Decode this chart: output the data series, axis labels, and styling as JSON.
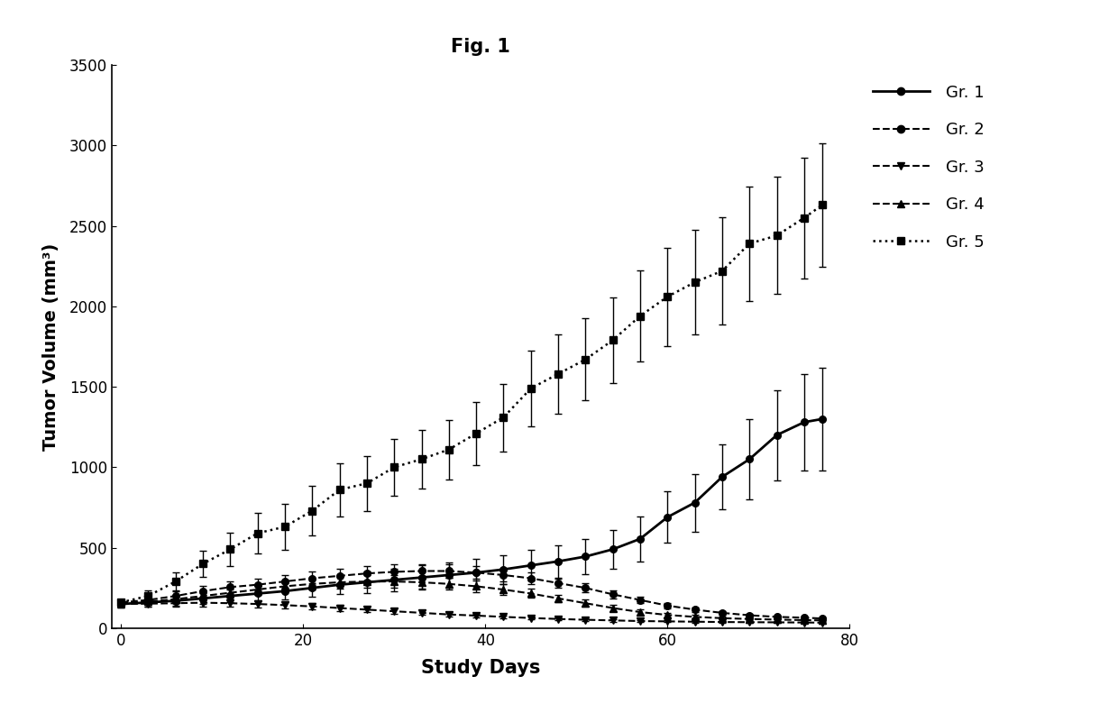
{
  "title": "Fig. 1",
  "xlabel": "Study Days",
  "ylabel": "Tumor Volume (mm³)",
  "xlim": [
    -1,
    80
  ],
  "ylim": [
    0,
    3500
  ],
  "xticks": [
    0,
    20,
    40,
    60,
    80
  ],
  "yticks": [
    0,
    500,
    1000,
    1500,
    2000,
    2500,
    3000,
    3500
  ],
  "gr1": {
    "x": [
      0,
      3,
      6,
      9,
      12,
      15,
      18,
      21,
      24,
      27,
      30,
      33,
      36,
      39,
      42,
      45,
      48,
      51,
      54,
      57,
      60,
      63,
      66,
      69,
      72,
      75,
      77
    ],
    "y": [
      150,
      160,
      170,
      185,
      200,
      215,
      230,
      250,
      270,
      285,
      300,
      315,
      330,
      345,
      365,
      390,
      415,
      445,
      490,
      555,
      690,
      780,
      940,
      1050,
      1200,
      1280,
      1300
    ],
    "yerr": [
      20,
      25,
      30,
      35,
      40,
      45,
      50,
      55,
      60,
      65,
      70,
      75,
      80,
      85,
      90,
      95,
      100,
      110,
      120,
      140,
      160,
      180,
      200,
      250,
      280,
      300,
      320
    ],
    "linestyle": "-",
    "marker": "o",
    "label": "Gr. 1",
    "linewidth": 2.0
  },
  "gr2": {
    "x": [
      0,
      3,
      6,
      9,
      12,
      15,
      18,
      21,
      24,
      27,
      30,
      33,
      36,
      39,
      42,
      45,
      48,
      51,
      54,
      57,
      60,
      63,
      66,
      69,
      72,
      75,
      77
    ],
    "y": [
      160,
      175,
      200,
      230,
      255,
      270,
      290,
      310,
      325,
      340,
      350,
      355,
      355,
      345,
      330,
      310,
      280,
      250,
      210,
      175,
      140,
      115,
      95,
      80,
      70,
      65,
      60
    ],
    "yerr": [
      20,
      25,
      28,
      32,
      36,
      38,
      40,
      42,
      44,
      45,
      45,
      44,
      42,
      40,
      37,
      34,
      30,
      27,
      24,
      20,
      18,
      15,
      13,
      11,
      10,
      9,
      8
    ],
    "linestyle": "--",
    "marker": "o",
    "label": "Gr. 2",
    "linewidth": 1.5
  },
  "gr3": {
    "x": [
      0,
      3,
      6,
      9,
      12,
      15,
      18,
      21,
      24,
      27,
      30,
      33,
      36,
      39,
      42,
      45,
      48,
      51,
      54,
      57,
      60,
      63,
      66,
      69,
      72,
      75,
      77
    ],
    "y": [
      150,
      152,
      155,
      158,
      155,
      150,
      143,
      135,
      125,
      115,
      105,
      95,
      85,
      78,
      70,
      63,
      57,
      52,
      48,
      44,
      42,
      40,
      38,
      37,
      36,
      35,
      34
    ],
    "yerr": [
      20,
      20,
      21,
      22,
      22,
      21,
      20,
      19,
      18,
      17,
      16,
      14,
      13,
      12,
      10,
      9,
      8,
      7,
      7,
      6,
      6,
      5,
      5,
      5,
      4,
      4,
      4
    ],
    "linestyle": "--",
    "marker": "v",
    "label": "Gr. 3",
    "linewidth": 1.5
  },
  "gr4": {
    "x": [
      0,
      3,
      6,
      9,
      12,
      15,
      18,
      21,
      24,
      27,
      30,
      33,
      36,
      39,
      42,
      45,
      48,
      51,
      54,
      57,
      60,
      63,
      66,
      69,
      72,
      75,
      77
    ],
    "y": [
      155,
      165,
      180,
      200,
      220,
      240,
      260,
      275,
      285,
      290,
      290,
      285,
      275,
      260,
      240,
      215,
      185,
      155,
      125,
      100,
      82,
      70,
      62,
      57,
      53,
      50,
      48
    ],
    "yerr": [
      20,
      22,
      24,
      27,
      30,
      33,
      35,
      37,
      38,
      39,
      39,
      38,
      36,
      34,
      31,
      28,
      24,
      21,
      18,
      15,
      13,
      11,
      9,
      8,
      7,
      6,
      6
    ],
    "linestyle": "--",
    "marker": "^",
    "label": "Gr. 4",
    "linewidth": 1.5
  },
  "gr5": {
    "x": [
      0,
      3,
      6,
      9,
      12,
      15,
      18,
      21,
      24,
      27,
      30,
      33,
      36,
      39,
      42,
      45,
      48,
      51,
      54,
      57,
      60,
      63,
      66,
      69,
      72,
      75,
      77
    ],
    "y": [
      160,
      200,
      290,
      400,
      490,
      590,
      630,
      730,
      860,
      900,
      1000,
      1050,
      1110,
      1210,
      1310,
      1490,
      1580,
      1670,
      1790,
      1940,
      2060,
      2150,
      2220,
      2390,
      2440,
      2550,
      2630
    ],
    "yerr": [
      20,
      35,
      55,
      80,
      105,
      125,
      145,
      155,
      165,
      170,
      175,
      180,
      185,
      195,
      210,
      235,
      245,
      255,
      265,
      285,
      305,
      325,
      335,
      355,
      365,
      375,
      385
    ],
    "linestyle": ":",
    "marker": "s",
    "label": "Gr. 5",
    "linewidth": 1.8
  }
}
